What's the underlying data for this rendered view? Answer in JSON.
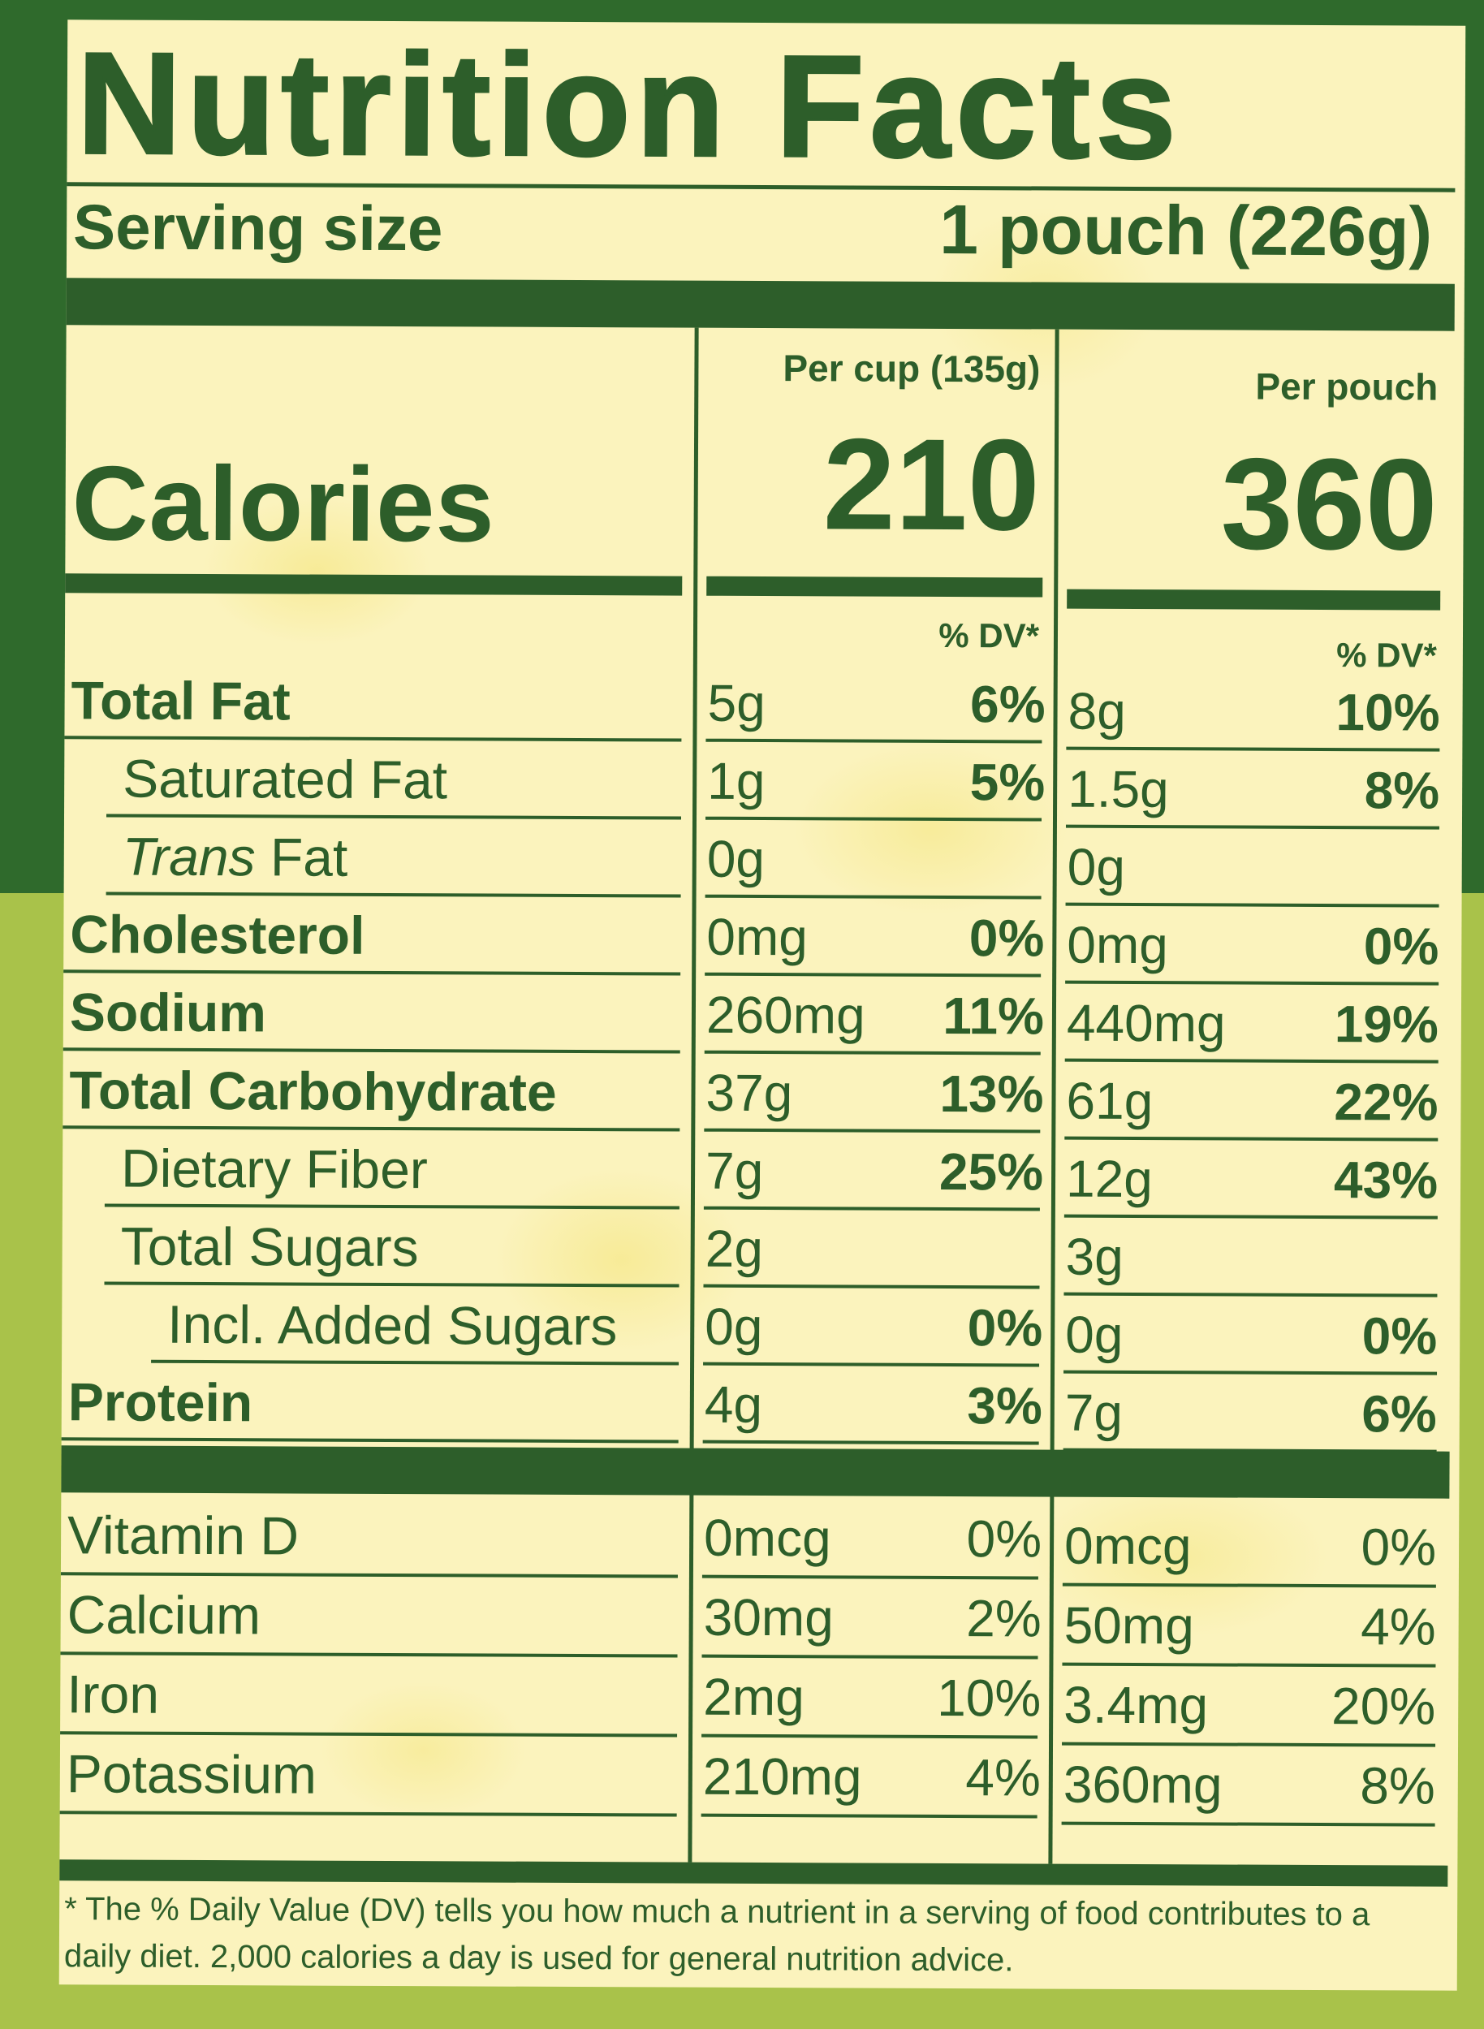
{
  "title": "Nutrition Facts",
  "serving": {
    "label": "Serving size",
    "value": "1 pouch (226g)"
  },
  "columns": [
    {
      "header": "Per cup (135g)",
      "calories": "210",
      "dv_label": "% DV*"
    },
    {
      "header": "Per pouch",
      "calories": "360",
      "dv_label": "% DV*"
    }
  ],
  "calories_label": "Calories",
  "nutrients": [
    {
      "name": "Total Fat",
      "bold": true,
      "indent": 0,
      "cup_amt": "5g",
      "cup_dv": "6%",
      "pouch_amt": "8g",
      "pouch_dv": "10%"
    },
    {
      "name": "Saturated Fat",
      "bold": false,
      "indent": 1,
      "cup_amt": "1g",
      "cup_dv": "5%",
      "pouch_amt": "1.5g",
      "pouch_dv": "8%"
    },
    {
      "name": "Trans Fat",
      "italic_part": "Trans",
      "rest": " Fat",
      "bold": false,
      "indent": 1,
      "cup_amt": "0g",
      "cup_dv": "",
      "pouch_amt": "0g",
      "pouch_dv": ""
    },
    {
      "name": "Cholesterol",
      "bold": true,
      "indent": 0,
      "cup_amt": "0mg",
      "cup_dv": "0%",
      "pouch_amt": "0mg",
      "pouch_dv": "0%"
    },
    {
      "name": "Sodium",
      "bold": true,
      "indent": 0,
      "cup_amt": "260mg",
      "cup_dv": "11%",
      "pouch_amt": "440mg",
      "pouch_dv": "19%"
    },
    {
      "name": "Total Carbohydrate",
      "bold": true,
      "indent": 0,
      "cup_amt": "37g",
      "cup_dv": "13%",
      "pouch_amt": "61g",
      "pouch_dv": "22%"
    },
    {
      "name": "Dietary Fiber",
      "bold": false,
      "indent": 1,
      "cup_amt": "7g",
      "cup_dv": "25%",
      "pouch_amt": "12g",
      "pouch_dv": "43%"
    },
    {
      "name": "Total Sugars",
      "bold": false,
      "indent": 1,
      "cup_amt": "2g",
      "cup_dv": "",
      "pouch_amt": "3g",
      "pouch_dv": ""
    },
    {
      "name": "Incl. Added Sugars",
      "bold": false,
      "indent": 2,
      "cup_amt": "0g",
      "cup_dv": "0%",
      "pouch_amt": "0g",
      "pouch_dv": "0%"
    },
    {
      "name": "Protein",
      "bold": true,
      "indent": 0,
      "cup_amt": "4g",
      "cup_dv": "3%",
      "pouch_amt": "7g",
      "pouch_dv": "6%"
    }
  ],
  "vitamins": [
    {
      "name": "Vitamin D",
      "cup_amt": "0mcg",
      "cup_dv": "0%",
      "pouch_amt": "0mcg",
      "pouch_dv": "0%"
    },
    {
      "name": "Calcium",
      "cup_amt": "30mg",
      "cup_dv": "2%",
      "pouch_amt": "50mg",
      "pouch_dv": "4%"
    },
    {
      "name": "Iron",
      "cup_amt": "2mg",
      "cup_dv": "10%",
      "pouch_amt": "3.4mg",
      "pouch_dv": "20%"
    },
    {
      "name": "Potassium",
      "cup_amt": "210mg",
      "cup_dv": "4%",
      "pouch_amt": "360mg",
      "pouch_dv": "8%"
    }
  ],
  "footnote": "* The % Daily Value (DV) tells you how much a nutrient in a serving of food contributes to a daily diet. 2,000 calories a day is used for general nutrition advice.",
  "colors": {
    "ink": "#2d5e2a",
    "paper": "#fbf3bd",
    "bg_top": "#2f6a2c",
    "bg_bottom": "#a9c24a"
  }
}
